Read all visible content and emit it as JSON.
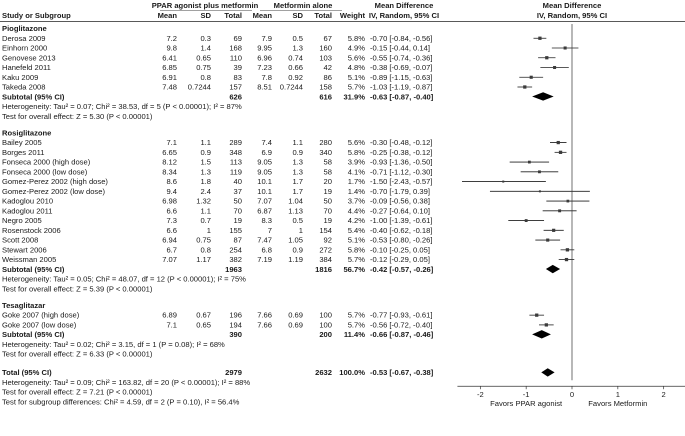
{
  "chart_data": {
    "type": "forest",
    "title": "",
    "header": {
      "group1": "PPAR agonist plus metformin",
      "group2": "Metformin alone",
      "md_top": "Mean Difference",
      "md_sub": "IV, Random, 95% CI",
      "plot_top": "Mean Difference",
      "plot_sub": "IV, Random, 95% CI",
      "study": "Study or Subgroup",
      "mean1": "Mean",
      "sd1": "SD",
      "total1": "Total",
      "mean2": "Mean",
      "sd2": "SD",
      "total2": "Total",
      "weight": "Weight"
    },
    "axis": {
      "xlim": [
        -2.4,
        2.4
      ],
      "ticks": [
        "-2",
        "-1",
        "0",
        "1",
        "2"
      ],
      "tick_values": [
        -2,
        -1,
        0,
        1,
        2
      ],
      "left_label": "Favors PPAR agonist",
      "right_label": "Favors Metformin"
    },
    "subgroups": [
      {
        "name": "Pioglitazone",
        "studies": [
          {
            "study": "Derosa 2009",
            "mean1": "7.2",
            "sd1": "0.3",
            "n1": "69",
            "mean2": "7.9",
            "sd2": "0.5",
            "n2": "67",
            "weight": "5.8%",
            "ci": "-0.70 [-0.84, -0.56]",
            "md": -0.7,
            "lo": -0.84,
            "hi": -0.56
          },
          {
            "study": "Einhorn 2000",
            "mean1": "9.8",
            "sd1": "1.4",
            "n1": "168",
            "mean2": "9.95",
            "sd2": "1.3",
            "n2": "160",
            "weight": "4.9%",
            "ci": "-0.15 [-0.44, 0.14]",
            "md": -0.15,
            "lo": -0.44,
            "hi": 0.14
          },
          {
            "study": "Genovese 2013",
            "mean1": "6.41",
            "sd1": "0.65",
            "n1": "110",
            "mean2": "6.96",
            "sd2": "0.74",
            "n2": "103",
            "weight": "5.6%",
            "ci": "-0.55 [-0.74, -0.36]",
            "md": -0.55,
            "lo": -0.74,
            "hi": -0.36
          },
          {
            "study": "Hanefeld 2011",
            "mean1": "6.85",
            "sd1": "0.75",
            "n1": "39",
            "mean2": "7.23",
            "sd2": "0.66",
            "n2": "42",
            "weight": "4.8%",
            "ci": "-0.38 [-0.69, -0.07]",
            "md": -0.38,
            "lo": -0.69,
            "hi": -0.07
          },
          {
            "study": "Kaku 2009",
            "mean1": "6.91",
            "sd1": "0.8",
            "n1": "83",
            "mean2": "7.8",
            "sd2": "0.92",
            "n2": "86",
            "weight": "5.1%",
            "ci": "-0.89 [-1.15, -0.63]",
            "md": -0.89,
            "lo": -1.15,
            "hi": -0.63
          },
          {
            "study": "Takeda 2008",
            "mean1": "7.48",
            "sd1": "0.7244",
            "n1": "157",
            "mean2": "8.51",
            "sd2": "0.7244",
            "n2": "158",
            "weight": "5.7%",
            "ci": "-1.03 [-1.19, -0.87]",
            "md": -1.03,
            "lo": -1.19,
            "hi": -0.87
          }
        ],
        "subtotal": {
          "label": "Subtotal (95% CI)",
          "n1": "626",
          "n2": "616",
          "weight": "31.9%",
          "ci": "-0.63 [-0.87, -0.40]",
          "md": -0.63,
          "lo": -0.87,
          "hi": -0.4
        },
        "heterogeneity": "Heterogeneity: Tau² = 0.07; Chi² = 38.53, df = 5 (P < 0.00001); I² = 87%",
        "overall_test": "Test for overall effect: Z = 5.30 (P < 0.00001)"
      },
      {
        "name": "Rosiglitazone",
        "studies": [
          {
            "study": "Bailey 2005",
            "mean1": "7.1",
            "sd1": "1.1",
            "n1": "289",
            "mean2": "7.4",
            "sd2": "1.1",
            "n2": "280",
            "weight": "5.6%",
            "ci": "-0.30 [-0.48, -0.12]",
            "md": -0.3,
            "lo": -0.48,
            "hi": -0.12
          },
          {
            "study": "Borges 2011",
            "mean1": "6.65",
            "sd1": "0.9",
            "n1": "348",
            "mean2": "6.9",
            "sd2": "0.9",
            "n2": "340",
            "weight": "5.8%",
            "ci": "-0.25 [-0.38, -0.12]",
            "md": -0.25,
            "lo": -0.38,
            "hi": -0.12
          },
          {
            "study": "Fonseca 2000 (high dose)",
            "mean1": "8.12",
            "sd1": "1.5",
            "n1": "113",
            "mean2": "9.05",
            "sd2": "1.3",
            "n2": "58",
            "weight": "3.9%",
            "ci": "-0.93 [-1.36, -0.50]",
            "md": -0.93,
            "lo": -1.36,
            "hi": -0.5
          },
          {
            "study": "Fonseca 2000 (low dose)",
            "mean1": "8.34",
            "sd1": "1.3",
            "n1": "119",
            "mean2": "9.05",
            "sd2": "1.3",
            "n2": "58",
            "weight": "4.1%",
            "ci": "-0.71 [-1.12, -0.30]",
            "md": -0.71,
            "lo": -1.12,
            "hi": -0.3
          },
          {
            "study": "Gomez-Perez 2002 (high dose)",
            "mean1": "8.6",
            "sd1": "1.8",
            "n1": "40",
            "mean2": "10.1",
            "sd2": "1.7",
            "n2": "20",
            "weight": "1.7%",
            "ci": "-1.50 [-2.43, -0.57]",
            "md": -1.5,
            "lo": -2.43,
            "hi": -0.57
          },
          {
            "study": "Gomez-Perez 2002 (low dose)",
            "mean1": "9.4",
            "sd1": "2.4",
            "n1": "37",
            "mean2": "10.1",
            "sd2": "1.7",
            "n2": "19",
            "weight": "1.4%",
            "ci": "-0.70 [-1.79, 0.39]",
            "md": -0.7,
            "lo": -1.79,
            "hi": 0.39
          },
          {
            "study": "Kadoglou 2010",
            "mean1": "6.98",
            "sd1": "1.32",
            "n1": "50",
            "mean2": "7.07",
            "sd2": "1.04",
            "n2": "50",
            "weight": "3.7%",
            "ci": "-0.09 [-0.56, 0.38]",
            "md": -0.09,
            "lo": -0.56,
            "hi": 0.38
          },
          {
            "study": "Kadoglou 2011",
            "mean1": "6.6",
            "sd1": "1.1",
            "n1": "70",
            "mean2": "6.87",
            "sd2": "1.13",
            "n2": "70",
            "weight": "4.4%",
            "ci": "-0.27 [-0.64, 0.10]",
            "md": -0.27,
            "lo": -0.64,
            "hi": 0.1
          },
          {
            "study": "Negro 2005",
            "mean1": "7.3",
            "sd1": "0.7",
            "n1": "19",
            "mean2": "8.3",
            "sd2": "0.5",
            "n2": "19",
            "weight": "4.2%",
            "ci": "-1.00 [-1.39, -0.61]",
            "md": -1.0,
            "lo": -1.39,
            "hi": -0.61
          },
          {
            "study": "Rosenstock 2006",
            "mean1": "6.6",
            "sd1": "1",
            "n1": "155",
            "mean2": "7",
            "sd2": "1",
            "n2": "154",
            "weight": "5.4%",
            "ci": "-0.40 [-0.62, -0.18]",
            "md": -0.4,
            "lo": -0.62,
            "hi": -0.18
          },
          {
            "study": "Scott 2008",
            "mean1": "6.94",
            "sd1": "0.75",
            "n1": "87",
            "mean2": "7.47",
            "sd2": "1.05",
            "n2": "92",
            "weight": "5.1%",
            "ci": "-0.53 [-0.80, -0.26]",
            "md": -0.53,
            "lo": -0.8,
            "hi": -0.26
          },
          {
            "study": "Stewart 2006",
            "mean1": "6.7",
            "sd1": "0.8",
            "n1": "254",
            "mean2": "6.8",
            "sd2": "0.9",
            "n2": "272",
            "weight": "5.8%",
            "ci": "-0.10 [-0.25, 0.05]",
            "md": -0.1,
            "lo": -0.25,
            "hi": 0.05
          },
          {
            "study": "Weissman 2005",
            "mean1": "7.07",
            "sd1": "1.17",
            "n1": "382",
            "mean2": "7.19",
            "sd2": "1.19",
            "n2": "384",
            "weight": "5.7%",
            "ci": "-0.12 [-0.29, 0.05]",
            "md": -0.12,
            "lo": -0.29,
            "hi": 0.05
          }
        ],
        "subtotal": {
          "label": "Subtotal (95% CI)",
          "n1": "1963",
          "n2": "1816",
          "weight": "56.7%",
          "ci": "-0.42 [-0.57, -0.26]",
          "md": -0.42,
          "lo": -0.57,
          "hi": -0.26
        },
        "heterogeneity": "Heterogeneity: Tau² = 0.05; Chi² = 48.07, df = 12 (P < 0.00001); I² = 75%",
        "overall_test": "Test for overall effect: Z = 5.39 (P < 0.00001)"
      },
      {
        "name": "Tesaglitazar",
        "studies": [
          {
            "study": "Goke 2007 (high dose)",
            "mean1": "6.89",
            "sd1": "0.67",
            "n1": "196",
            "mean2": "7.66",
            "sd2": "0.69",
            "n2": "100",
            "weight": "5.7%",
            "ci": "-0.77 [-0.93, -0.61]",
            "md": -0.77,
            "lo": -0.93,
            "hi": -0.61
          },
          {
            "study": "Goke 2007 (low dose)",
            "mean1": "7.1",
            "sd1": "0.65",
            "n1": "194",
            "mean2": "7.66",
            "sd2": "0.69",
            "n2": "100",
            "weight": "5.7%",
            "ci": "-0.56 [-0.72, -0.40]",
            "md": -0.56,
            "lo": -0.72,
            "hi": -0.4
          }
        ],
        "subtotal": {
          "label": "Subtotal (95% CI)",
          "n1": "390",
          "n2": "200",
          "weight": "11.4%",
          "ci": "-0.66 [-0.87, -0.46]",
          "md": -0.66,
          "lo": -0.87,
          "hi": -0.46
        },
        "heterogeneity": "Heterogeneity: Tau² = 0.02; Chi² = 3.15, df = 1 (P = 0.08); I² = 68%",
        "overall_test": "Test for overall effect: Z = 6.33 (P < 0.00001)"
      }
    ],
    "total": {
      "label": "Total (95% CI)",
      "n1": "2979",
      "n2": "2632",
      "weight": "100.0%",
      "ci": "-0.53 [-0.67, -0.38]",
      "md": -0.53,
      "lo": -0.67,
      "hi": -0.38
    },
    "total_heterogeneity": "Heterogeneity: Tau² = 0.09; Chi² = 163.82, df = 20 (P < 0.00001); I² = 88%",
    "total_overall_test": "Test for overall effect: Z = 7.21 (P < 0.00001)",
    "subgroup_test": "Test for subgroup differences: Chi² = 4.59, df = 2 (P = 0.10), I² = 56.4%"
  }
}
